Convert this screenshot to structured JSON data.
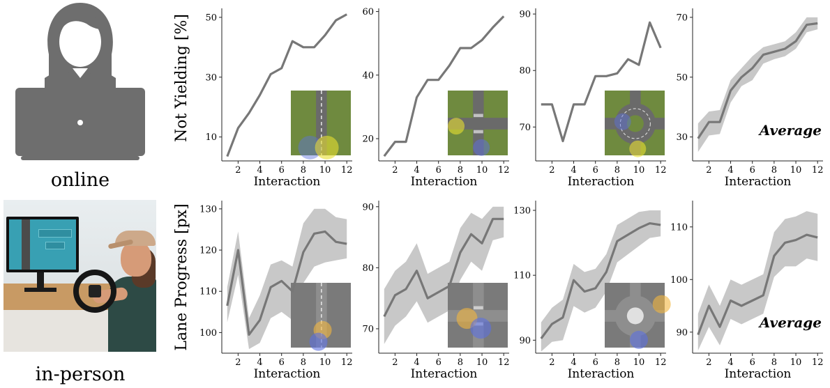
{
  "row_labels": [
    "online",
    "in-person"
  ],
  "yaxis_labels": [
    "Not Yielding [%]",
    "Lane Progress [px]"
  ],
  "average_label": "Average",
  "colors": {
    "line": "#777777",
    "band": "#c8c8c8",
    "grass": "#6f8a3f",
    "road": "#6a6a6a",
    "road_light": "#7a7a7a",
    "yellow": "#e8df30",
    "blue": "#5b70e0",
    "orange": "#f2b640",
    "icon_gray": "#6e6e6e",
    "icon_light": "#9a9a9a"
  },
  "icons": [
    "person-laptop-icon",
    "in-person-driving-photo"
  ],
  "chart_data": [
    {
      "type": "line",
      "xlabel": "Interaction",
      "ylabel": "Not Yielding [%]",
      "scene": "straight-road-grass",
      "xlim": [
        0.5,
        12.5
      ],
      "ylim": [
        2,
        53
      ],
      "xticks": [
        2,
        4,
        6,
        8,
        10,
        12
      ],
      "yticks": [
        10,
        30,
        50
      ],
      "x": [
        1,
        2,
        3,
        4,
        5,
        6,
        7,
        8,
        9,
        10,
        11,
        12
      ],
      "values": [
        3.5,
        13,
        18,
        24,
        31,
        33,
        42,
        40,
        40,
        44,
        49,
        51
      ]
    },
    {
      "type": "line",
      "xlabel": "Interaction",
      "ylabel": "",
      "scene": "intersection-grass",
      "xlim": [
        0.5,
        12.5
      ],
      "ylim": [
        13,
        61
      ],
      "xticks": [
        2,
        4,
        6,
        8,
        10,
        12
      ],
      "yticks": [
        20,
        40,
        60
      ],
      "x": [
        1,
        2,
        3,
        4,
        5,
        6,
        7,
        8,
        9,
        10,
        11,
        12
      ],
      "values": [
        14.5,
        19,
        19,
        33,
        38.5,
        38.5,
        43,
        48.5,
        48.5,
        51,
        55,
        58.5
      ]
    },
    {
      "type": "line",
      "xlabel": "Interaction",
      "ylabel": "",
      "scene": "roundabout-grass",
      "xlim": [
        0.5,
        12.5
      ],
      "ylim": [
        64,
        91
      ],
      "xticks": [
        2,
        4,
        6,
        8,
        10,
        12
      ],
      "yticks": [
        70,
        80,
        90
      ],
      "x": [
        1,
        2,
        3,
        4,
        5,
        6,
        7,
        8,
        9,
        10,
        11,
        12
      ],
      "values": [
        74,
        74,
        67.5,
        74,
        74,
        79,
        79,
        79.5,
        82,
        81,
        88.5,
        84
      ]
    },
    {
      "type": "area",
      "xlabel": "Interaction",
      "ylabel": "",
      "scene": "none",
      "xlim": [
        0.5,
        12.5
      ],
      "ylim": [
        22,
        73
      ],
      "xticks": [
        2,
        4,
        6,
        8,
        10,
        12
      ],
      "yticks": [
        30,
        50,
        70
      ],
      "x": [
        1,
        2,
        3,
        4,
        5,
        6,
        7,
        8,
        9,
        10,
        11,
        12
      ],
      "values": [
        29.5,
        35,
        35,
        45.5,
        50,
        53,
        57.5,
        58.5,
        59.5,
        62,
        67.5,
        68
      ],
      "lower": [
        25,
        30.5,
        31,
        41.5,
        47,
        49,
        54.5,
        56,
        57,
        59.5,
        65,
        66
      ],
      "upper": [
        34.5,
        38.5,
        39,
        49,
        53,
        57,
        60,
        61,
        62,
        65,
        70,
        70
      ],
      "annotation": "Average"
    },
    {
      "type": "area",
      "xlabel": "Interaction",
      "ylabel": "Lane Progress [px]",
      "scene": "straight-road-gray",
      "xlim": [
        0.5,
        12.5
      ],
      "ylim": [
        95,
        132
      ],
      "xticks": [
        2,
        4,
        6,
        8,
        10,
        12
      ],
      "yticks": [
        100,
        110,
        120,
        130
      ],
      "x": [
        1,
        2,
        3,
        4,
        5,
        6,
        7,
        8,
        9,
        10,
        11,
        12
      ],
      "values": [
        106.5,
        120,
        99.5,
        103,
        111,
        112.5,
        110,
        119.5,
        124,
        124.5,
        122,
        121.5
      ],
      "lower": [
        102.5,
        114,
        96,
        97.5,
        103.5,
        105,
        103,
        112,
        116,
        117,
        117.5,
        118
      ],
      "upper": [
        111,
        124.5,
        103.5,
        109,
        116.5,
        117.5,
        116,
        126.5,
        130,
        130,
        128,
        127.5
      ]
    },
    {
      "type": "area",
      "xlabel": "Interaction",
      "ylabel": "",
      "scene": "intersection-gray",
      "xlim": [
        0.5,
        12.5
      ],
      "ylim": [
        66,
        91
      ],
      "xticks": [
        2,
        4,
        6,
        8,
        10,
        12
      ],
      "yticks": [
        70,
        80,
        90
      ],
      "x": [
        1,
        2,
        3,
        4,
        5,
        6,
        7,
        8,
        9,
        10,
        11,
        12
      ],
      "values": [
        72,
        75.5,
        76.5,
        79.5,
        75,
        76,
        77,
        82.5,
        85.5,
        84,
        88,
        88
      ],
      "lower": [
        67.5,
        70.5,
        72,
        74.5,
        71,
        72,
        73,
        78,
        81,
        79.5,
        84.5,
        85
      ],
      "upper": [
        76.5,
        79.5,
        81,
        84,
        79,
        80,
        81,
        86.5,
        89,
        88,
        90,
        90
      ]
    },
    {
      "type": "area",
      "xlabel": "Interaction",
      "ylabel": "",
      "scene": "roundabout-gray",
      "xlim": [
        0.5,
        12.5
      ],
      "ylim": [
        86,
        133
      ],
      "xticks": [
        2,
        4,
        6,
        8,
        10,
        12
      ],
      "yticks": [
        90,
        110,
        130
      ],
      "x": [
        1,
        2,
        3,
        4,
        5,
        6,
        7,
        8,
        9,
        10,
        11,
        12
      ],
      "values": [
        90.5,
        95,
        97,
        108.5,
        105,
        106,
        111,
        120.5,
        122.5,
        124.5,
        126,
        125.5
      ],
      "lower": [
        86.5,
        89.5,
        90,
        100.5,
        98.5,
        100,
        105,
        114,
        116.5,
        119,
        121.5,
        122
      ],
      "upper": [
        95.5,
        100,
        102.5,
        113.5,
        111,
        112,
        116.5,
        125.5,
        127.5,
        129.5,
        130,
        130
      ]
    },
    {
      "type": "area",
      "xlabel": "Interaction",
      "ylabel": "",
      "scene": "none",
      "xlim": [
        0.5,
        12.5
      ],
      "ylim": [
        86,
        115
      ],
      "xticks": [
        2,
        4,
        6,
        8,
        10,
        12
      ],
      "yticks": [
        90,
        100,
        110
      ],
      "x": [
        1,
        2,
        3,
        4,
        5,
        6,
        7,
        8,
        9,
        10,
        11,
        12
      ],
      "values": [
        89.5,
        95,
        91,
        96,
        95,
        96,
        97,
        104.5,
        107,
        107.5,
        108.5,
        108
      ],
      "lower": [
        86.5,
        91,
        87.5,
        92.5,
        91.5,
        92.5,
        93.5,
        100.5,
        102.5,
        102.5,
        104,
        103.5
      ],
      "upper": [
        93.5,
        99,
        95,
        100,
        99,
        100,
        101,
        109,
        111.5,
        112,
        113,
        112.5
      ],
      "annotation": "Average"
    }
  ]
}
